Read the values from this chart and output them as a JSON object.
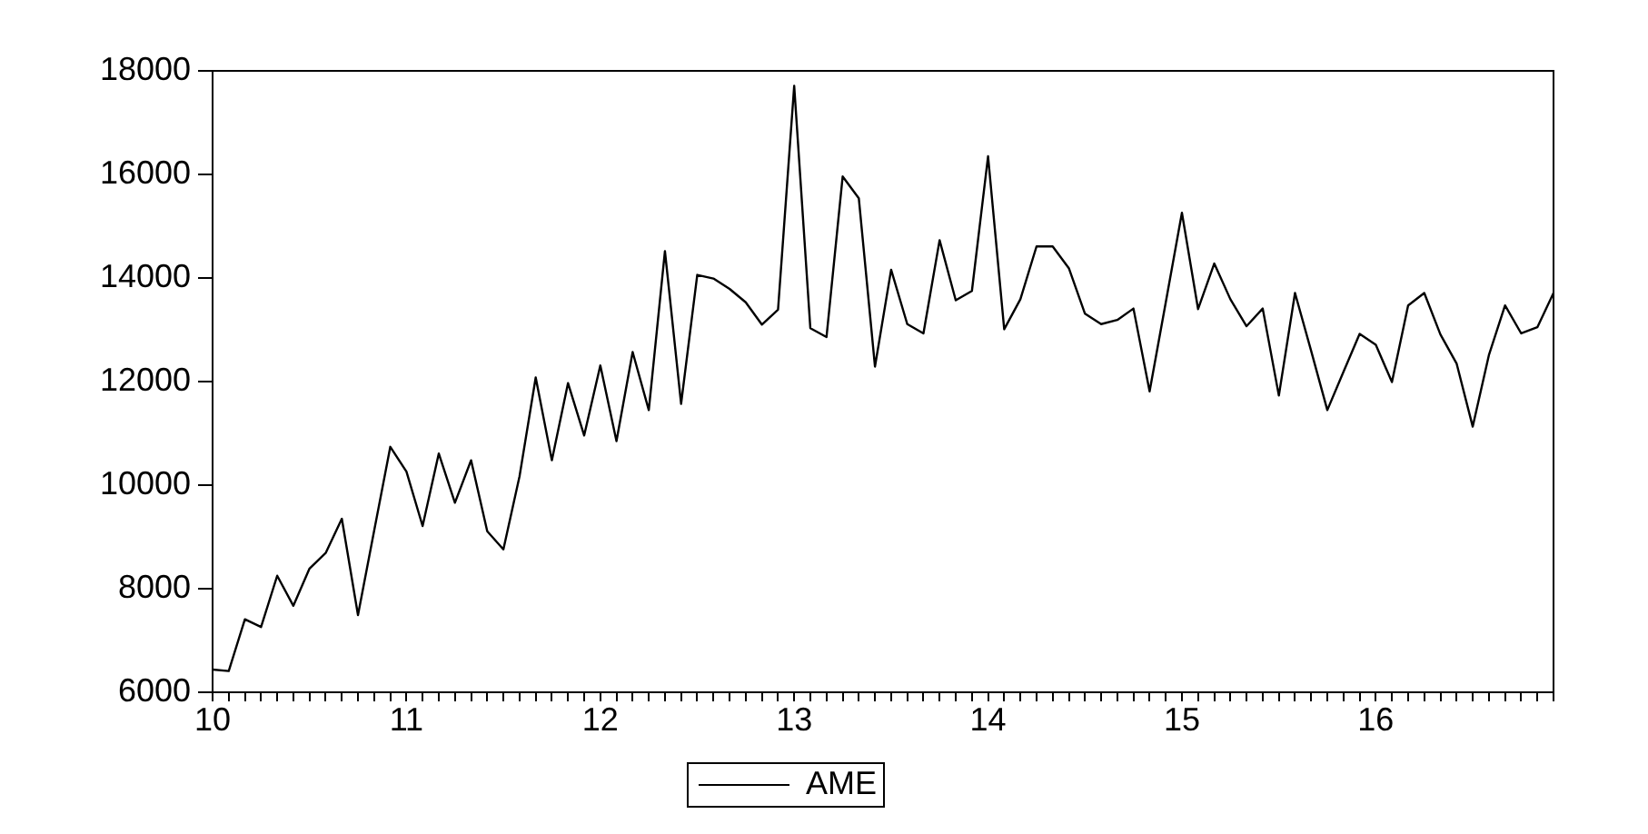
{
  "chart_data": {
    "type": "line",
    "x": [
      10,
      10.0833,
      10.1667,
      10.25,
      10.3333,
      10.4167,
      10.5,
      10.5833,
      10.6667,
      10.75,
      10.8333,
      10.9167,
      11,
      11.0833,
      11.1667,
      11.25,
      11.3333,
      11.4167,
      11.5,
      11.5833,
      11.6667,
      11.75,
      11.8333,
      11.9167,
      12,
      12.0833,
      12.1667,
      12.25,
      12.3333,
      12.4167,
      12.5,
      12.5833,
      12.6667,
      12.75,
      12.8333,
      12.9167,
      13,
      13.0833,
      13.1667,
      13.25,
      13.3333,
      13.4167,
      13.5,
      13.5833,
      13.6667,
      13.75,
      13.8333,
      13.9167,
      14,
      14.0833,
      14.1667,
      14.25,
      14.3333,
      14.4167,
      14.5,
      14.5833,
      14.6667,
      14.75,
      14.8333,
      14.9167,
      15,
      15.0833,
      15.1667,
      15.25,
      15.3333,
      15.4167,
      15.5,
      15.5833,
      15.6667,
      15.75,
      15.8333,
      15.9167,
      16,
      16.0833,
      16.1667,
      16.25,
      16.3333,
      16.4167,
      16.5,
      16.5833,
      16.6667,
      16.75,
      16.8333,
      16.9167
    ],
    "series": [
      {
        "name": "AME",
        "color": "#000000",
        "values": [
          6440,
          6410,
          7410,
          7260,
          8250,
          7670,
          8390,
          8690,
          9350,
          7490,
          9120,
          10740,
          10260,
          9210,
          10610,
          9660,
          10480,
          9110,
          8760,
          10170,
          12080,
          10480,
          11970,
          10960,
          12310,
          10850,
          12570,
          11450,
          14520,
          11570,
          14060,
          13990,
          13790,
          13530,
          13100,
          13390,
          17710,
          13030,
          12860,
          15960,
          15540,
          12290,
          14160,
          13110,
          12930,
          14730,
          13570,
          13750,
          16350,
          13010,
          13590,
          14610,
          14610,
          14190,
          13310,
          13110,
          13190,
          13410,
          11810,
          13530,
          15260,
          13400,
          14280,
          13590,
          13070,
          13410,
          11730,
          13710,
          12590,
          11450,
          12190,
          12920,
          12710,
          11990,
          13470,
          13710,
          12910,
          12350,
          11130,
          12510,
          13470,
          12930,
          13050,
          13710
        ]
      }
    ],
    "xlim": [
      10,
      16.9167
    ],
    "xticks": [
      10,
      {
        "value": 10.0833,
        "label": null
      },
      {
        "value": 10.1667,
        "label": null
      },
      {
        "value": 10.25,
        "label": null
      },
      {
        "value": 10.3333,
        "label": null
      },
      {
        "value": 10.4167,
        "label": null
      },
      {
        "value": 10.5,
        "label": null
      },
      {
        "value": 10.5833,
        "label": null
      },
      {
        "value": 10.6667,
        "label": null
      },
      {
        "value": 10.75,
        "label": null
      },
      {
        "value": 10.8333,
        "label": null
      },
      {
        "value": 10.9167,
        "label": null
      },
      11,
      {
        "value": 11.0833,
        "label": null
      },
      {
        "value": 11.1667,
        "label": null
      },
      {
        "value": 11.25,
        "label": null
      },
      {
        "value": 11.3333,
        "label": null
      },
      {
        "value": 11.4167,
        "label": null
      },
      {
        "value": 11.5,
        "label": null
      },
      {
        "value": 11.5833,
        "label": null
      },
      {
        "value": 11.6667,
        "label": null
      },
      {
        "value": 11.75,
        "label": null
      },
      {
        "value": 11.8333,
        "label": null
      },
      {
        "value": 11.9167,
        "label": null
      },
      12,
      {
        "value": 12.0833,
        "label": null
      },
      {
        "value": 12.1667,
        "label": null
      },
      {
        "value": 12.25,
        "label": null
      },
      {
        "value": 12.3333,
        "label": null
      },
      {
        "value": 12.4167,
        "label": null
      },
      {
        "value": 12.5,
        "label": null
      },
      {
        "value": 12.5833,
        "label": null
      },
      {
        "value": 12.6667,
        "label": null
      },
      {
        "value": 12.75,
        "label": null
      },
      {
        "value": 12.8333,
        "label": null
      },
      {
        "value": 12.9167,
        "label": null
      },
      13,
      {
        "value": 13.0833,
        "label": null
      },
      {
        "value": 13.1667,
        "label": null
      },
      {
        "value": 13.25,
        "label": null
      },
      {
        "value": 13.3333,
        "label": null
      },
      {
        "value": 13.4167,
        "label": null
      },
      {
        "value": 13.5,
        "label": null
      },
      {
        "value": 13.5833,
        "label": null
      },
      {
        "value": 13.6667,
        "label": null
      },
      {
        "value": 13.75,
        "label": null
      },
      {
        "value": 13.8333,
        "label": null
      },
      {
        "value": 13.9167,
        "label": null
      },
      14,
      {
        "value": 14.0833,
        "label": null
      },
      {
        "value": 14.1667,
        "label": null
      },
      {
        "value": 14.25,
        "label": null
      },
      {
        "value": 14.3333,
        "label": null
      },
      {
        "value": 14.4167,
        "label": null
      },
      {
        "value": 14.5,
        "label": null
      },
      {
        "value": 14.5833,
        "label": null
      },
      {
        "value": 14.6667,
        "label": null
      },
      {
        "value": 14.75,
        "label": null
      },
      {
        "value": 14.8333,
        "label": null
      },
      {
        "value": 14.9167,
        "label": null
      },
      15,
      {
        "value": 15.0833,
        "label": null
      },
      {
        "value": 15.1667,
        "label": null
      },
      {
        "value": 15.25,
        "label": null
      },
      {
        "value": 15.3333,
        "label": null
      },
      {
        "value": 15.4167,
        "label": null
      },
      {
        "value": 15.5,
        "label": null
      },
      {
        "value": 15.5833,
        "label": null
      },
      {
        "value": 15.6667,
        "label": null
      },
      {
        "value": 15.75,
        "label": null
      },
      {
        "value": 15.8333,
        "label": null
      },
      {
        "value": 15.9167,
        "label": null
      },
      16,
      {
        "value": 16.0833,
        "label": null
      },
      {
        "value": 16.1667,
        "label": null
      },
      {
        "value": 16.25,
        "label": null
      },
      {
        "value": 16.3333,
        "label": null
      },
      {
        "value": 16.4167,
        "label": null
      },
      {
        "value": 16.5,
        "label": null
      },
      {
        "value": 16.5833,
        "label": null
      },
      {
        "value": 16.6667,
        "label": null
      },
      {
        "value": 16.75,
        "label": null
      },
      {
        "value": 16.8333,
        "label": null
      },
      {
        "value": 16.9167,
        "label": null
      }
    ],
    "ylim": [
      6000,
      18000
    ],
    "yticks": [
      6000,
      8000,
      10000,
      12000,
      14000,
      16000,
      18000
    ],
    "grid": false,
    "legend": "bottom",
    "marker": "none",
    "line_style": "solid"
  }
}
